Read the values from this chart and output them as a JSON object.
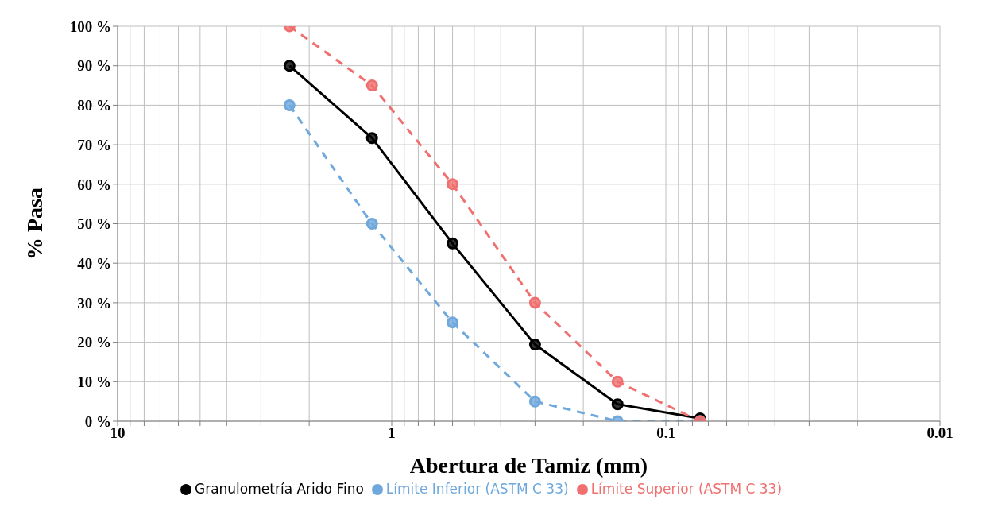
{
  "chart_data": {
    "type": "line",
    "xlabel": "Abertura de Tamiz (mm)",
    "ylabel": "% Pasa",
    "log": "x",
    "grid": true,
    "legend": "bottom",
    "marker": "circle",
    "x": [
      2.36,
      1.18,
      0.6,
      0.3,
      0.15,
      0.075
    ],
    "series": [
      {
        "name": "Granulometría Arido Fino",
        "color": "#000000",
        "line_style": "solid",
        "values": [
          90,
          71.7,
          45,
          19.4,
          4.3,
          0.7
        ]
      },
      {
        "name": "Límite Inferior (ASTM C 33)",
        "color": "#6fa8dc",
        "line_style": "dashed",
        "values": [
          80,
          50,
          25,
          5,
          0,
          0
        ]
      },
      {
        "name": "Límite Superior (ASTM C 33)",
        "color": "#f07070",
        "line_style": "dashed",
        "values": [
          100,
          85,
          60,
          30,
          10,
          0
        ]
      }
    ],
    "xlim": [
      10,
      0.01
    ],
    "xticks": [
      10,
      {
        "value": 9,
        "label": null
      },
      {
        "value": 8,
        "label": null
      },
      {
        "value": 7,
        "label": null
      },
      {
        "value": 6,
        "label": null
      },
      {
        "value": 5,
        "label": null
      },
      {
        "value": 4,
        "label": null
      },
      {
        "value": 3,
        "label": null
      },
      {
        "value": 2,
        "label": null
      },
      1,
      {
        "value": 0.9,
        "label": null
      },
      {
        "value": 0.8,
        "label": null
      },
      {
        "value": 0.7,
        "label": null
      },
      {
        "value": 0.6,
        "label": null
      },
      {
        "value": 0.5,
        "label": null
      },
      {
        "value": 0.4,
        "label": null
      },
      {
        "value": 0.3,
        "label": null
      },
      {
        "value": 0.2,
        "label": null
      },
      0.1,
      {
        "value": 0.09,
        "label": null
      },
      {
        "value": 0.08,
        "label": null
      },
      {
        "value": 0.07,
        "label": null
      },
      {
        "value": 0.06,
        "label": null
      },
      {
        "value": 0.05,
        "label": null
      },
      {
        "value": 0.04,
        "label": null
      },
      {
        "value": 0.03,
        "label": null
      },
      {
        "value": 0.02,
        "label": null
      },
      0.01
    ],
    "ylim": [
      0,
      100
    ],
    "yticks": [
      {
        "value": 0,
        "label": "0 %"
      },
      {
        "value": 10,
        "label": "10 %"
      },
      {
        "value": 20,
        "label": "20 %"
      },
      {
        "value": 30,
        "label": "30 %"
      },
      {
        "value": 40,
        "label": "40 %"
      },
      {
        "value": 50,
        "label": "50 %"
      },
      {
        "value": 60,
        "label": "60 %"
      },
      {
        "value": 70,
        "label": "70 %"
      },
      {
        "value": 80,
        "label": "80 %"
      },
      {
        "value": 90,
        "label": "90 %"
      },
      {
        "value": 100,
        "label": "100 %"
      }
    ]
  }
}
